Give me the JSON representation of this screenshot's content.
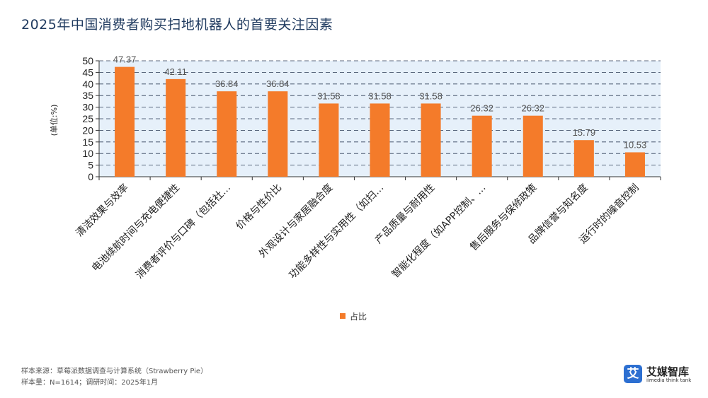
{
  "chart_data": {
    "type": "bar",
    "title": "2025年中国消费者购买扫地机器人的首要关注因素",
    "ylabel": "(单位:%)",
    "xlabel": "",
    "ylim": [
      0,
      50
    ],
    "yticks": [
      0,
      5,
      10,
      15,
      20,
      25,
      30,
      35,
      40,
      45,
      50
    ],
    "grid": true,
    "legend_position": "bottom-center",
    "categories": [
      "清洁效果与效率",
      "电池续航时间与充电便捷性",
      "消费者评价与口碑（包括社…",
      "价格与性价比",
      "外观设计与家居融合度",
      "功能多样性与实用性（如扫…",
      "产品质量与耐用性",
      "智能化程度（如APP控制、…",
      "售后服务与保修政策",
      "品牌信誉与知名度",
      "运行时的噪音控制"
    ],
    "series": [
      {
        "name": "占比",
        "color": "#f47b2a",
        "values": [
          47.37,
          42.11,
          36.84,
          36.84,
          31.58,
          31.58,
          31.58,
          26.32,
          26.32,
          15.79,
          10.53
        ]
      }
    ]
  },
  "colors": {
    "bar": "#f47b2a",
    "plot_background": "#e6f0fa",
    "title": "#1f3a5f"
  },
  "footer": {
    "source": "样本来源：草莓派数据调查与计算系统（Strawberry Pie）",
    "sample": "样本量：N=1614；调研时间：2025年1月"
  },
  "logo": {
    "mark": "艾",
    "name": "艾媒智库",
    "sub": "iimedia think tank"
  }
}
